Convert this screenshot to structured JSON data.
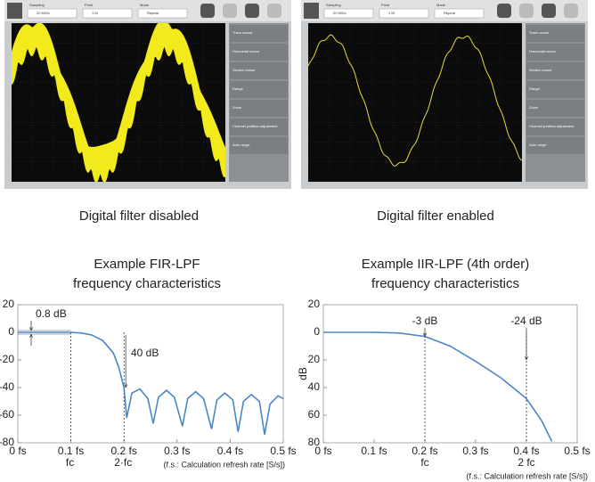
{
  "screens": [
    {
      "caption": "Digital filter disabled",
      "toolbar": [
        "Sampling",
        "20 MS/s",
        "Point",
        "1 M",
        "Mode",
        "Repeat"
      ],
      "menu": [
        "Trace cursor",
        "Horizontal cursor",
        "Section cursor",
        "Range",
        "Zoom",
        "Channel position adjustment",
        "Auto range"
      ]
    },
    {
      "caption": "Digital filter enabled",
      "toolbar": [
        "Sampling",
        "20 MS/s",
        "Point",
        "1 M",
        "Mode",
        "Repeat"
      ],
      "menu": [
        "Trace cursor",
        "Horizontal cursor",
        "Section cursor",
        "Range",
        "Zoom",
        "Channel position adjustment",
        "Auto range"
      ]
    }
  ],
  "chart_data": [
    {
      "type": "line",
      "title": "Example FIR-LPF",
      "subtitle": "frequency characteristics",
      "x": [
        0,
        0.05,
        0.1,
        0.12,
        0.14,
        0.16,
        0.18,
        0.19,
        0.2,
        0.205,
        0.215,
        0.23,
        0.245,
        0.255,
        0.265,
        0.28,
        0.295,
        0.31,
        0.32,
        0.335,
        0.35,
        0.365,
        0.375,
        0.39,
        0.405,
        0.415,
        0.425,
        0.44,
        0.455,
        0.465,
        0.475,
        0.49,
        0.5
      ],
      "series": [
        {
          "color": "#4a86c5",
          "values": [
            0,
            0,
            0,
            -0.5,
            -2,
            -6,
            -15,
            -25,
            -40,
            -62,
            -44,
            -41,
            -48,
            -66,
            -47,
            -42,
            -47,
            -68,
            -48,
            -43,
            -48,
            -70,
            -49,
            -44,
            -49,
            -72,
            -50,
            -45,
            -50,
            -74,
            -52,
            -46,
            -48
          ]
        }
      ],
      "xlim": [
        0,
        0.5
      ],
      "xticks": [
        {
          "value": 0,
          "label": "0 fs"
        },
        {
          "value": 0.1,
          "label": "0.1 fs"
        },
        {
          "value": 0.2,
          "label": "0.2 fs"
        },
        {
          "value": 0.3,
          "label": "0.3 fs"
        },
        {
          "value": 0.4,
          "label": "0.4 fs"
        },
        {
          "value": 0.5,
          "label": "0.5 fs"
        }
      ],
      "ylim": [
        -80,
        20
      ],
      "yticks": [
        20,
        0,
        -20,
        -40,
        -60,
        -80
      ],
      "reference_x": [
        0.1,
        0.2
      ],
      "annotations": [
        "0.8 dB",
        "40 dB",
        "fc",
        "2·fc"
      ],
      "note": "(f.s.: Calculation refresh rate [S/s])"
    },
    {
      "type": "line",
      "title": "Example IIR-LPF (4th order)",
      "subtitle": "frequency characteristics",
      "ylabel": "dB",
      "x": [
        0,
        0.1,
        0.15,
        0.2,
        0.25,
        0.3,
        0.35,
        0.4,
        0.43,
        0.45
      ],
      "series": [
        {
          "color": "#4a86c5",
          "values": [
            0,
            0,
            -0.5,
            -3,
            -10,
            -21,
            -33,
            -48,
            -64,
            -79
          ]
        }
      ],
      "xlim": [
        0,
        0.5
      ],
      "xticks": [
        {
          "value": 0,
          "label": "0 fs"
        },
        {
          "value": 0.1,
          "label": "0.1 fs"
        },
        {
          "value": 0.2,
          "label": "0.2 fs"
        },
        {
          "value": 0.3,
          "label": "0.3 fs"
        },
        {
          "value": 0.4,
          "label": "0.4 fs"
        },
        {
          "value": 0.5,
          "label": "0.5 fs"
        }
      ],
      "ylim": [
        -80,
        20
      ],
      "yticks": [
        20,
        0,
        {
          "value": -20,
          "label": "20"
        },
        {
          "value": -40,
          "label": "40"
        },
        {
          "value": -60,
          "label": "60"
        },
        {
          "value": -80,
          "label": "80"
        }
      ],
      "reference_x": [
        0.2,
        0.4
      ],
      "annotations": [
        "-3 dB",
        "-24 dB",
        "fc",
        "2 fc"
      ],
      "note": "(f.s.: Calculation refresh rate [S/s])"
    }
  ]
}
